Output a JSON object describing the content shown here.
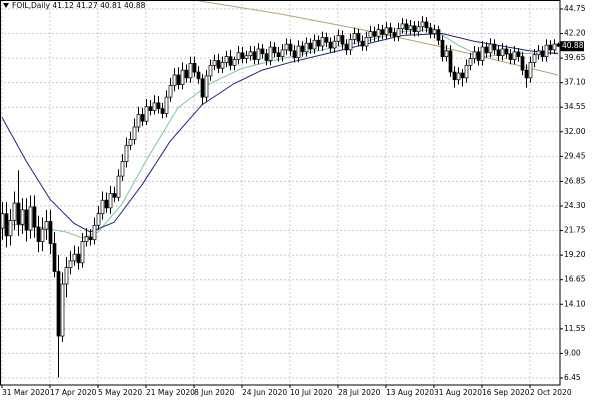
{
  "chart_data": {
    "type": "candlestick",
    "title": "FOIL,Daily",
    "header_values": [
      41.12,
      41.27,
      40.81,
      40.88
    ],
    "last_price": 40.88,
    "categories": [
      "31 Mar 2020",
      null,
      null,
      null,
      null,
      null,
      null,
      null,
      null,
      null,
      null,
      null,
      "17 Apr 2020",
      null,
      null,
      null,
      null,
      null,
      null,
      null,
      null,
      null,
      null,
      null,
      "5 May 2020",
      null,
      null,
      null,
      null,
      null,
      null,
      null,
      null,
      null,
      null,
      null,
      "21 May 2020",
      null,
      null,
      null,
      null,
      null,
      null,
      null,
      null,
      null,
      null,
      null,
      "8 Jun 2020",
      null,
      null,
      null,
      null,
      null,
      null,
      null,
      null,
      null,
      null,
      null,
      "24 Jun 2020",
      null,
      null,
      null,
      null,
      null,
      null,
      null,
      null,
      null,
      null,
      null,
      "10 Jul 2020",
      null,
      null,
      null,
      null,
      null,
      null,
      null,
      null,
      null,
      null,
      null,
      "28 Jul 2020",
      null,
      null,
      null,
      null,
      null,
      null,
      null,
      null,
      null,
      null,
      null,
      "13 Aug 2020",
      null,
      null,
      null,
      null,
      null,
      null,
      null,
      null,
      null,
      null,
      null,
      "31 Aug 2020",
      null,
      null,
      null,
      null,
      null,
      null,
      null,
      null,
      null,
      null,
      null,
      "16 Sep 2020",
      null,
      null,
      null,
      null,
      null,
      null,
      null,
      null,
      null,
      null,
      null,
      "2 Oct 2020",
      null,
      null,
      null,
      null,
      null,
      null,
      null
    ],
    "ohlc": {
      "open": [
        22.0,
        23.5,
        21.2,
        22.8,
        24.6,
        22.4,
        23.9,
        21.8,
        24.2,
        22.1,
        20.6,
        21.9,
        22.7,
        20.4,
        17.5,
        10.8,
        16.2,
        17.9,
        18.6,
        19.3,
        18.4,
        20.6,
        21.1,
        20.8,
        22.3,
        23.5,
        24.9,
        24.1,
        25.6,
        25.2,
        27.4,
        28.9,
        30.6,
        31.2,
        32.5,
        33.8,
        33.1,
        34.6,
        34.2,
        35.0,
        34.4,
        33.9,
        35.6,
        36.8,
        37.9,
        36.9,
        38.4,
        37.6,
        39.1,
        38.2,
        37.5,
        35.6,
        37.8,
        38.9,
        39.4,
        38.6,
        39.2,
        39.8,
        38.9,
        39.5,
        40.2,
        39.6,
        39.9,
        40.3,
        39.5,
        40.6,
        40.1,
        39.4,
        40.8,
        40.2,
        39.8,
        40.5,
        41.1,
        40.4,
        39.7,
        40.9,
        40.3,
        41.2,
        40.6,
        41.5,
        40.9,
        41.8,
        41.3,
        40.7,
        41.4,
        42.0,
        41.1,
        40.5,
        41.6,
        42.2,
        41.4,
        40.9,
        41.8,
        42.4,
        41.9,
        42.6,
        42.1,
        42.8,
        42.3,
        41.9,
        42.7,
        43.2,
        42.6,
        43.0,
        42.4,
        42.9,
        43.4,
        42.8,
        42.2,
        42.6,
        41.5,
        39.8,
        40.4,
        38.2,
        37.4,
        38.1,
        37.6,
        38.9,
        39.6,
        40.3,
        39.4,
        40.8,
        40.2,
        41.1,
        40.5,
        39.9,
        40.6,
        40.1,
        39.5,
        40.3,
        39.8,
        38.4,
        37.6,
        39.2,
        40.0,
        40.4,
        39.8,
        41.0,
        40.5,
        41.12
      ],
      "high": [
        24.7,
        24.7,
        24.0,
        25.8,
        28.0,
        25.1,
        25.1,
        25.4,
        25.4,
        23.3,
        23.1,
        23.9,
        23.9,
        21.6,
        19.2,
        17.4,
        19.0,
        19.6,
        20.2,
        20.1,
        21.5,
        22.0,
        21.9,
        23.1,
        24.3,
        25.8,
        25.7,
        26.4,
        26.3,
        28.1,
        29.7,
        31.4,
        32.0,
        33.4,
        34.6,
        34.5,
        35.4,
        35.3,
        35.8,
        35.7,
        35.0,
        36.3,
        37.6,
        38.6,
        38.7,
        39.2,
        39.0,
        39.8,
        39.8,
        38.8,
        38.0,
        38.4,
        39.5,
        40.0,
        40.1,
        39.8,
        40.4,
        40.5,
        39.8,
        40.9,
        40.8,
        40.4,
        40.9,
        40.9,
        41.2,
        41.1,
        40.6,
        41.4,
        41.3,
        40.8,
        41.1,
        41.7,
        41.6,
        41.0,
        41.5,
        41.4,
        41.8,
        41.7,
        42.1,
        42.0,
        42.4,
        42.3,
        41.8,
        42.0,
        42.6,
        42.5,
        41.6,
        42.2,
        42.8,
        42.7,
        42.0,
        42.4,
        43.0,
        42.9,
        43.2,
        43.1,
        43.4,
        43.3,
        42.8,
        43.3,
        43.8,
        43.7,
        43.6,
        43.5,
        43.5,
        44.0,
        43.9,
        43.3,
        43.1,
        43.0,
        42.0,
        41.0,
        41.0,
        38.8,
        38.7,
        38.5,
        39.5,
        40.2,
        40.9,
        40.8,
        41.4,
        41.3,
        41.7,
        41.6,
        41.0,
        41.2,
        41.0,
        40.6,
        40.9,
        40.7,
        40.3,
        39.0,
        39.8,
        40.6,
        41.0,
        40.9,
        41.6,
        41.5,
        41.6,
        41.27
      ],
      "low": [
        20.8,
        20.0,
        20.2,
        21.8,
        21.2,
        21.4,
        20.6,
        20.9,
        21.0,
        19.5,
        19.6,
        20.8,
        19.3,
        16.9,
        6.5,
        10.2,
        14.8,
        17.2,
        18.1,
        17.7,
        17.9,
        20.1,
        20.2,
        20.3,
        21.8,
        22.9,
        23.6,
        23.5,
        24.7,
        24.8,
        26.9,
        28.3,
        30.1,
        30.7,
        32.0,
        32.6,
        32.7,
        33.7,
        33.8,
        33.9,
        33.4,
        33.5,
        35.1,
        36.2,
        36.4,
        36.4,
        37.1,
        37.1,
        37.7,
        37.0,
        34.8,
        35.1,
        37.3,
        38.4,
        38.1,
        38.1,
        38.7,
        38.4,
        38.4,
        39.0,
        39.1,
        39.1,
        39.4,
        39.0,
        39.0,
        39.6,
        38.9,
        38.9,
        39.7,
        39.3,
        39.3,
        40.0,
        39.9,
        39.2,
        39.2,
        39.8,
        39.8,
        40.1,
        40.1,
        40.4,
        40.4,
        40.8,
        40.2,
        40.2,
        40.9,
        40.6,
        40.0,
        40.0,
        41.1,
        40.9,
        40.4,
        40.4,
        41.3,
        41.4,
        41.4,
        41.6,
        41.6,
        41.8,
        41.4,
        41.4,
        42.2,
        42.1,
        42.1,
        41.9,
        41.9,
        42.4,
        42.3,
        41.7,
        41.7,
        41.0,
        39.3,
        39.3,
        37.7,
        36.6,
        36.9,
        36.7,
        37.1,
        38.4,
        39.1,
        38.9,
        38.9,
        39.7,
        39.7,
        40.0,
        39.4,
        39.4,
        39.6,
        39.0,
        39.0,
        39.3,
        37.9,
        36.6,
        37.1,
        38.7,
        39.5,
        39.3,
        39.3,
        40.0,
        40.1,
        40.81
      ],
      "close": [
        23.5,
        21.2,
        22.8,
        24.6,
        22.4,
        23.9,
        21.8,
        24.2,
        22.1,
        20.6,
        21.9,
        22.7,
        20.4,
        17.5,
        10.8,
        16.2,
        17.9,
        18.6,
        19.3,
        18.4,
        20.6,
        21.1,
        20.8,
        22.3,
        23.5,
        24.9,
        24.1,
        25.6,
        25.2,
        27.4,
        28.9,
        30.6,
        31.2,
        32.5,
        33.8,
        33.1,
        34.6,
        34.2,
        35.0,
        34.4,
        33.9,
        35.6,
        36.8,
        37.9,
        36.9,
        38.4,
        37.6,
        39.1,
        38.2,
        37.5,
        35.6,
        37.8,
        38.9,
        39.4,
        38.6,
        39.2,
        39.8,
        38.9,
        39.5,
        40.2,
        39.6,
        39.9,
        40.3,
        39.5,
        40.6,
        40.1,
        39.4,
        40.8,
        40.2,
        39.8,
        40.5,
        41.1,
        40.4,
        39.7,
        40.9,
        40.3,
        41.2,
        40.6,
        41.5,
        40.9,
        41.8,
        41.3,
        40.7,
        41.4,
        42.0,
        41.1,
        40.5,
        41.6,
        42.2,
        41.4,
        40.9,
        41.8,
        42.4,
        41.9,
        42.6,
        42.1,
        42.8,
        42.3,
        41.9,
        42.7,
        43.2,
        42.6,
        43.0,
        42.4,
        42.9,
        43.4,
        42.8,
        42.2,
        42.6,
        41.5,
        39.8,
        40.4,
        38.2,
        37.4,
        38.1,
        37.6,
        38.9,
        39.6,
        40.3,
        39.4,
        40.8,
        40.2,
        41.1,
        40.5,
        39.9,
        40.6,
        40.1,
        39.5,
        40.3,
        39.8,
        38.4,
        37.6,
        39.2,
        40.0,
        40.4,
        39.8,
        41.0,
        40.5,
        41.1,
        40.88
      ]
    },
    "lines": [
      {
        "color": "#7cc4a8",
        "x": [
          0,
          8,
          16,
          20,
          24,
          30,
          36,
          44,
          52,
          60,
          70,
          80,
          90,
          100,
          108,
          114,
          120,
          128,
          139
        ],
        "values": [
          22.5,
          22.2,
          21.6,
          21.0,
          21.6,
          24.5,
          29.0,
          34.5,
          37.0,
          38.6,
          39.6,
          40.5,
          41.3,
          42.4,
          42.6,
          41.0,
          39.8,
          40.1,
          40.2
        ]
      },
      {
        "color": "#23237a",
        "x": [
          0,
          6,
          12,
          18,
          22,
          28,
          35,
          42,
          50,
          58,
          65,
          72,
          80,
          90,
          100,
          110,
          118,
          125,
          132,
          139
        ],
        "values": [
          33.5,
          29.0,
          25.0,
          22.5,
          21.6,
          22.6,
          26.5,
          31.0,
          34.8,
          37.0,
          38.4,
          39.2,
          40.0,
          41.0,
          42.0,
          42.2,
          41.4,
          40.9,
          40.4,
          40.1
        ]
      },
      {
        "color": "#b8a275",
        "x": [
          49,
          70,
          90,
          110,
          125,
          139
        ],
        "values": [
          45.6,
          44.2,
          42.6,
          40.8,
          39.3,
          37.9
        ]
      }
    ],
    "ylim": [
      5.72,
      45.68
    ],
    "yticks": [
      44.75,
      {
        "value": 42.2,
        "label": "42.20"
      },
      39.65,
      {
        "value": 37.1,
        "label": "37.10"
      },
      34.55,
      {
        "value": 32,
        "label": "32.00"
      },
      29.45,
      26.85,
      {
        "value": 24.3,
        "label": "24.30"
      },
      21.75,
      {
        "value": 19.2,
        "label": "19.20"
      },
      16.65,
      {
        "value": 14.1,
        "label": "14.10"
      },
      11.55,
      {
        "value": 9,
        "label": "9.00"
      },
      6.45
    ],
    "grid": true
  }
}
